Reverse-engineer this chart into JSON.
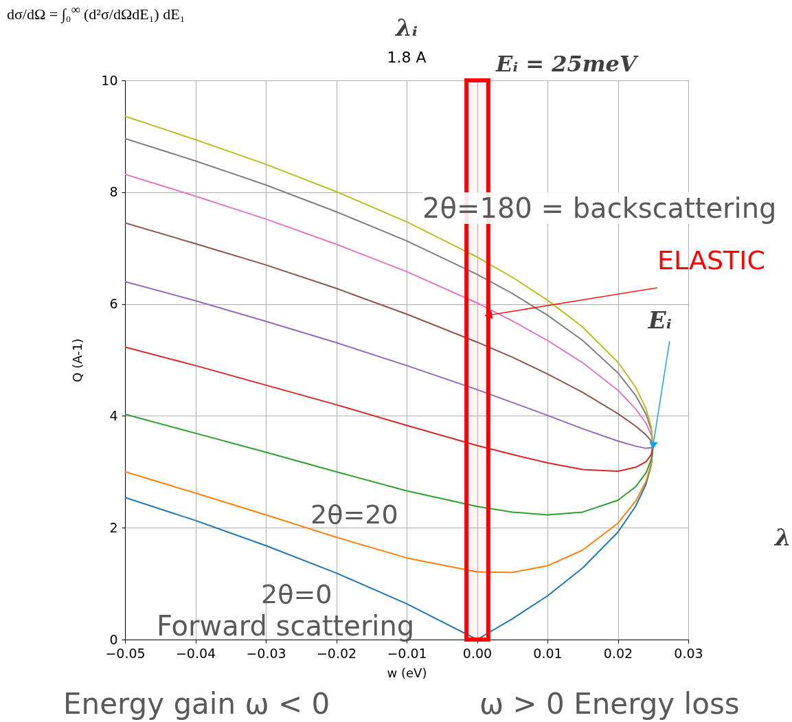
{
  "chart_data": {
    "type": "line",
    "title": "1.8 A",
    "xlabel": "w (eV)",
    "ylabel": "Q (A-1)",
    "x": [
      -0.05,
      -0.04,
      -0.03,
      -0.02,
      -0.01,
      0,
      0.005,
      0.01,
      0.015,
      0.02,
      0.0225,
      0.024,
      0.02475,
      0.025
    ],
    "series": [
      {
        "color": "#1f77b4",
        "values": [
          2.54,
          2.13,
          1.68,
          1.19,
          0.64,
          0,
          0.37,
          0.78,
          1.28,
          1.92,
          2.38,
          2.78,
          3.13,
          3.47
        ]
      },
      {
        "color": "#ff7f0e",
        "values": [
          3.0,
          2.62,
          2.23,
          1.83,
          1.46,
          1.21,
          1.2,
          1.32,
          1.6,
          2.08,
          2.47,
          2.83,
          3.15,
          3.47
        ]
      },
      {
        "color": "#2ca02c",
        "values": [
          4.03,
          3.69,
          3.35,
          3.0,
          2.66,
          2.38,
          2.28,
          2.23,
          2.28,
          2.49,
          2.73,
          2.98,
          3.22,
          3.47
        ]
      },
      {
        "color": "#d62728",
        "values": [
          5.23,
          4.9,
          4.55,
          4.2,
          3.83,
          3.47,
          3.31,
          3.16,
          3.04,
          3.01,
          3.08,
          3.18,
          3.31,
          3.47
        ]
      },
      {
        "color": "#9467bd",
        "values": [
          6.4,
          6.06,
          5.69,
          5.31,
          4.9,
          4.47,
          4.24,
          4.01,
          3.77,
          3.55,
          3.46,
          3.42,
          3.43,
          3.47
        ]
      },
      {
        "color": "#8c564b",
        "values": [
          7.45,
          7.08,
          6.7,
          6.28,
          5.82,
          5.32,
          5.05,
          4.75,
          4.42,
          4.04,
          3.82,
          3.66,
          3.55,
          3.47
        ]
      },
      {
        "color": "#e377c2",
        "values": [
          8.32,
          7.93,
          7.52,
          7.07,
          6.58,
          6.02,
          5.7,
          5.35,
          4.95,
          4.46,
          4.13,
          3.87,
          3.66,
          3.47
        ]
      },
      {
        "color": "#7f7f7f",
        "values": [
          8.96,
          8.56,
          8.13,
          7.65,
          7.13,
          6.53,
          6.19,
          5.8,
          5.35,
          4.77,
          4.37,
          4.03,
          3.75,
          3.47
        ]
      },
      {
        "color": "#bcbd22",
        "values": [
          9.36,
          8.94,
          8.5,
          8.01,
          7.47,
          6.84,
          6.48,
          6.07,
          5.59,
          4.96,
          4.52,
          4.13,
          3.8,
          3.47
        ]
      }
    ],
    "xlim": [
      -0.05,
      0.03
    ],
    "xticks": [
      {
        "value": -0.05,
        "label": "−0.05"
      },
      {
        "value": -0.04,
        "label": "−0.04"
      },
      {
        "value": -0.03,
        "label": "−0.03"
      },
      {
        "value": -0.02,
        "label": "−0.02"
      },
      {
        "value": -0.01,
        "label": "−0.01"
      },
      {
        "value": 0,
        "label": "0.00"
      },
      {
        "value": 0.01,
        "label": "0.01"
      },
      {
        "value": 0.02,
        "label": "0.02"
      },
      {
        "value": 0.03,
        "label": "0.03"
      }
    ],
    "ylim": [
      0,
      10
    ],
    "yticks": [
      0,
      2,
      4,
      6,
      8,
      10
    ],
    "grid": true,
    "bands": [
      {
        "axis": "x",
        "from": -0.0015,
        "to": 0.0016,
        "color": "#ff0000"
      }
    ],
    "annotations": [
      "dσ/dΩ = ∫₀$^{∞}$ (d²σ/dΩdE₁) dE₁",
      "λᵢ",
      "Eᵢ = 25meV",
      "2θ=180 = backscattering",
      "λ",
      "Energy gain ω < 0",
      "ω > 0   Energy loss",
      "Forward scattering",
      "2θ=20",
      "2θ=0",
      {
        "text": "ELASTIC",
        "x": 0.0016,
        "y": 5.8
      },
      {
        "text": "Eᵢ",
        "x": 0.025,
        "y": 3.47
      }
    ]
  }
}
